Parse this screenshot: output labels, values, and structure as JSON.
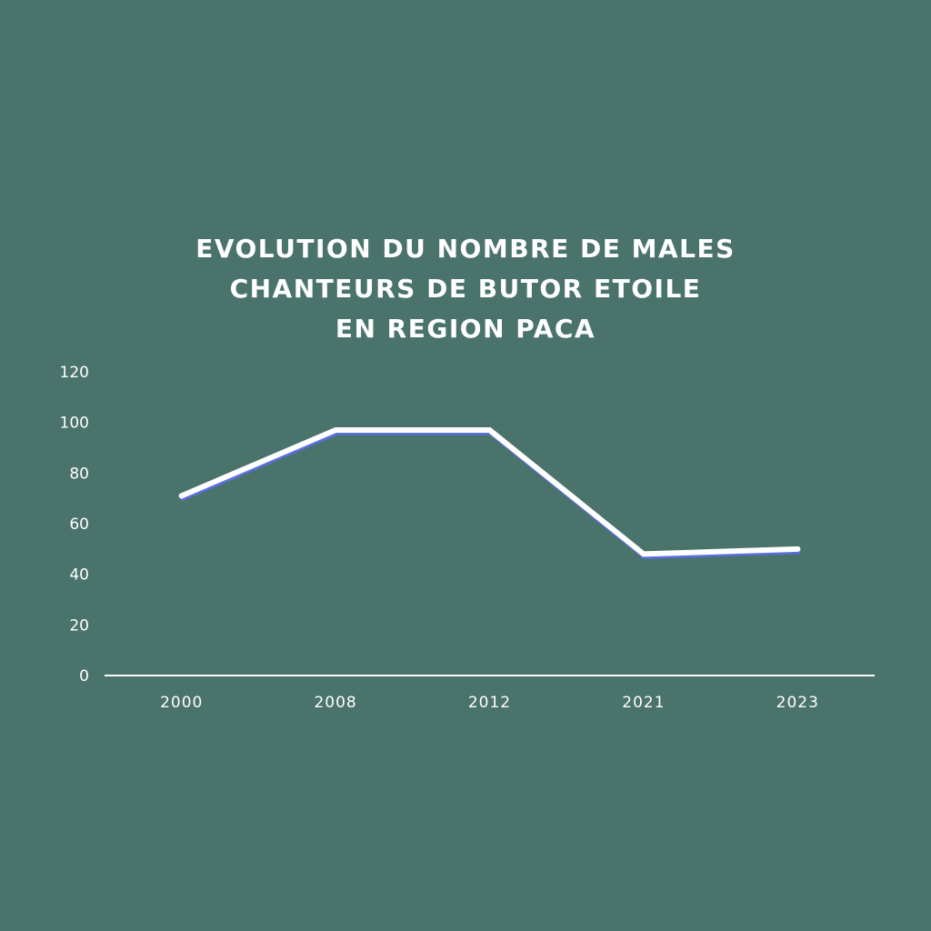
{
  "chart_data": {
    "type": "line",
    "title_lines": [
      "EVOLUTION DU NOMBRE DE MALES",
      "CHANTEURS DE BUTOR ETOILE",
      "EN REGION PACA"
    ],
    "categories": [
      "2000",
      "2008",
      "2012",
      "2021",
      "2023"
    ],
    "series": [
      {
        "values": [
          71,
          97,
          97,
          48,
          50
        ]
      }
    ],
    "yticks": [
      "0",
      "20",
      "40",
      "60",
      "80",
      "100",
      "120"
    ],
    "ylim": [
      0,
      120
    ],
    "xlabel": "",
    "ylabel": "",
    "grid": false,
    "drop_lines": true,
    "colors": {
      "background": "#4a736c",
      "line": "#ffffff",
      "line_shadow": "#5a6fe0",
      "axis": "#ffffff",
      "text": "#ffffff"
    }
  }
}
